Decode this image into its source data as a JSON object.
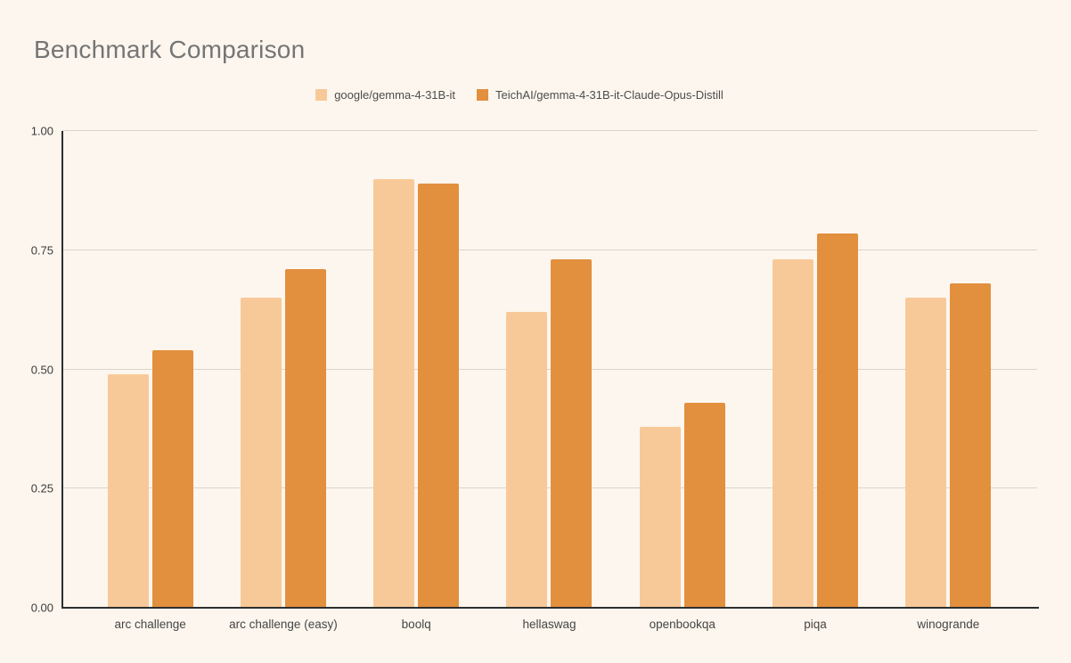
{
  "title": "Benchmark Comparison",
  "colors": {
    "background": "#fdf6ee",
    "grid": "#d9d4cc",
    "axis": "#2e2e2e",
    "series_light": "#f8c998",
    "series_dark": "#e28f3e"
  },
  "legend": [
    {
      "label": "google/gemma-4-31B-it",
      "color": "#f8c998"
    },
    {
      "label": "TeichAI/gemma-4-31B-it-Claude-Opus-Distill",
      "color": "#e28f3e"
    }
  ],
  "chart_data": {
    "type": "bar",
    "title": "Benchmark Comparison",
    "categories": [
      "arc challenge",
      "arc challenge (easy)",
      "boolq",
      "hellaswag",
      "openbookqa",
      "piqa",
      "winogrande"
    ],
    "series": [
      {
        "name": "google/gemma-4-31B-it",
        "color": "#f8c998",
        "values": [
          0.49,
          0.65,
          0.9,
          0.62,
          0.38,
          0.73,
          0.65
        ]
      },
      {
        "name": "TeichAI/gemma-4-31B-it-Claude-Opus-Distill",
        "color": "#e28f3e",
        "values": [
          0.54,
          0.71,
          0.89,
          0.73,
          0.43,
          0.785,
          0.68
        ]
      }
    ],
    "xlabel": "",
    "ylabel": "",
    "ylim": [
      0,
      1
    ],
    "yticks": [
      0,
      0.25,
      0.5,
      0.75,
      1
    ],
    "ytick_labels": [
      "0.00",
      "0.25",
      "0.50",
      "0.75",
      "1.00"
    ],
    "grid": true,
    "legend_position": "top-center"
  }
}
